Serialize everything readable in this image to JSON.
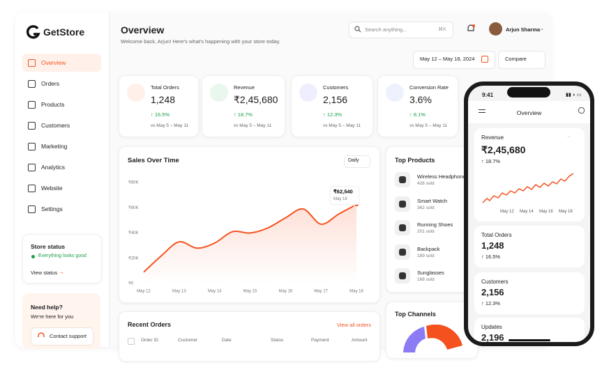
{
  "brand": "GetStore",
  "nav": [
    "Overview",
    "Orders",
    "Products",
    "Customers",
    "Marketing",
    "Analytics",
    "Website",
    "Settings"
  ],
  "store_status": {
    "title": "Store status",
    "status": "Everything looks good",
    "link": "View status"
  },
  "help": {
    "title": "Need help?",
    "subtitle": "We're here for you",
    "button": "Contact support"
  },
  "header": {
    "title": "Overview",
    "subtitle": "Welcome back, Arjun! Here's what's happening with your store today.",
    "search": "Search anything...",
    "shortcut": "⌘K",
    "user": "Arjun Sharma",
    "date_range": "May 12 – May 18, 2024",
    "compare": "Compare"
  },
  "kpis": [
    {
      "title": "Total Orders",
      "value": "1,248",
      "change": "↑ 16.5%",
      "period": "vs May 5 – May 11"
    },
    {
      "title": "Revenue",
      "value": "₹2,45,680",
      "change": "↑ 18.7%",
      "period": "vs May 5 – May 11"
    },
    {
      "title": "Customers",
      "value": "2,156",
      "change": "↑ 12.3%",
      "period": "vs May 5 – May 11"
    },
    {
      "title": "Conversion Rate",
      "value": "3.6%",
      "change": "↑ 8.1%",
      "period": "vs May 5 – May 11"
    }
  ],
  "chart_data": {
    "type": "line",
    "title": "Sales Over Time",
    "granularity": "Daily",
    "categories": [
      "May 12",
      null,
      "May 13",
      null,
      "May 14",
      null,
      "May 15",
      null,
      "May 16",
      null,
      "May 17",
      null,
      "May 18"
    ],
    "values": [
      9000,
      22000,
      33000,
      28000,
      32000,
      41000,
      40000,
      44000,
      52000,
      59000,
      47000,
      55000,
      62540
    ],
    "color": "#f4511e",
    "ylim": [
      0,
      80000
    ],
    "yticks": [
      {
        "value": 0,
        "label": "₹0"
      },
      {
        "value": 20000,
        "label": "₹20K"
      },
      {
        "value": 40000,
        "label": "₹40K"
      },
      {
        "value": 60000,
        "label": "₹60K"
      },
      {
        "value": 80000,
        "label": "₹80K"
      }
    ],
    "grid": false,
    "annotation": {
      "label": "₹62,540",
      "date": "May 18"
    }
  },
  "top_products": {
    "title": "Top Products",
    "items": [
      {
        "name": "Wireless Headphones",
        "sold": "426 sold"
      },
      {
        "name": "Smart Watch",
        "sold": "362 sold"
      },
      {
        "name": "Running Shoes",
        "sold": "201 sold"
      },
      {
        "name": "Backpack",
        "sold": "189 sold"
      },
      {
        "name": "Sunglasses",
        "sold": "168 sold"
      }
    ]
  },
  "top_channels": {
    "title": "Top Channels"
  },
  "recent_orders": {
    "title": "Recent Orders",
    "link": "View all orders",
    "columns": [
      "Order ID",
      "Customer",
      "Date",
      "Status",
      "Payment",
      "Amount"
    ]
  },
  "phone": {
    "time": "9:41",
    "title": "Overview",
    "revenue": {
      "label": "Revenue",
      "value": "₹2,45,680",
      "change": "↑ 18.7%",
      "dates": [
        "May 12",
        "May 14",
        "May 16",
        "May 18"
      ]
    },
    "cards": [
      {
        "label": "Total Orders",
        "value": "1,248",
        "change": "↑ 16.5%"
      },
      {
        "label": "Customers",
        "value": "2,156",
        "change": "↑ 12.3%"
      },
      {
        "label": "Updates",
        "value": "2,196"
      }
    ]
  }
}
